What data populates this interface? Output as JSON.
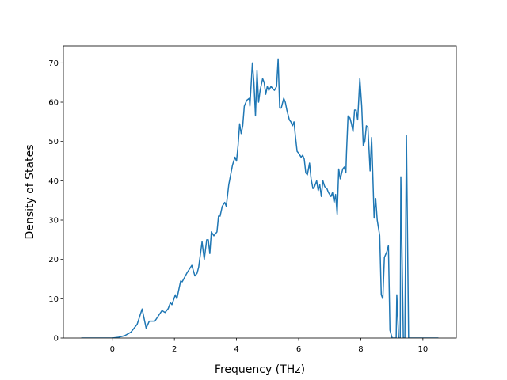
{
  "chart_data": {
    "type": "line",
    "xlabel": "Frequency (THz)",
    "ylabel": "Density of States",
    "color": "#1f77b4",
    "x": [
      -1.0,
      0.0,
      0.2,
      0.4,
      0.6,
      0.8,
      0.96,
      1.09,
      1.19,
      1.37,
      1.6,
      1.7,
      1.8,
      1.87,
      1.92,
      2.03,
      2.08,
      2.2,
      2.25,
      2.4,
      2.56,
      2.66,
      2.73,
      2.78,
      2.89,
      2.96,
      3.04,
      3.09,
      3.14,
      3.19,
      3.27,
      3.37,
      3.42,
      3.47,
      3.54,
      3.62,
      3.67,
      3.75,
      3.87,
      3.95,
      4.0,
      4.05,
      4.1,
      4.15,
      4.2,
      4.25,
      4.33,
      4.41,
      4.43,
      4.51,
      4.56,
      4.61,
      4.66,
      4.71,
      4.76,
      4.84,
      4.89,
      4.94,
      4.99,
      5.04,
      5.11,
      5.16,
      5.22,
      5.29,
      5.34,
      5.39,
      5.44,
      5.52,
      5.57,
      5.62,
      5.7,
      5.75,
      5.8,
      5.85,
      5.9,
      5.95,
      6.0,
      6.08,
      6.13,
      6.18,
      6.23,
      6.28,
      6.35,
      6.4,
      6.46,
      6.51,
      6.58,
      6.63,
      6.68,
      6.73,
      6.78,
      6.84,
      6.91,
      6.96,
      7.04,
      7.09,
      7.14,
      7.19,
      7.24,
      7.29,
      7.34,
      7.42,
      7.47,
      7.52,
      7.54,
      7.59,
      7.65,
      7.7,
      7.75,
      7.8,
      7.85,
      7.9,
      7.97,
      8.03,
      8.08,
      8.13,
      8.18,
      8.23,
      8.3,
      8.35,
      8.43,
      8.48,
      8.53,
      8.61,
      8.66,
      8.71,
      8.76,
      8.84,
      8.89,
      8.94,
      9.01,
      9.14,
      9.16,
      9.22,
      9.27,
      9.29,
      9.37,
      9.42,
      9.47,
      9.54,
      10.5
    ],
    "values": [
      0,
      0,
      0.2,
      0.6,
      1.5,
      3.5,
      7.4,
      2.5,
      4.3,
      4.3,
      7,
      6.5,
      7.5,
      9,
      8.5,
      11,
      10,
      14.5,
      14.3,
      16.5,
      18.5,
      15.8,
      16.5,
      18,
      24.5,
      20,
      25,
      25,
      21.5,
      27,
      26,
      27,
      31,
      31,
      33.5,
      34.5,
      33.5,
      39,
      44,
      46,
      45,
      49,
      54.5,
      52,
      54,
      59,
      60.5,
      61,
      59,
      70,
      65,
      56.5,
      68,
      60,
      63,
      66,
      65,
      62,
      64,
      63,
      64,
      63.5,
      63,
      64,
      71,
      58.5,
      58.5,
      61,
      60,
      58,
      55.5,
      55,
      54,
      55,
      51,
      47.5,
      47,
      46,
      46.5,
      45.5,
      42,
      41.5,
      44.5,
      40.5,
      38,
      38.5,
      40,
      37.5,
      39,
      36,
      40,
      38.5,
      38,
      37,
      36,
      37,
      34.5,
      36.5,
      31.5,
      43,
      40.5,
      43,
      43.5,
      42,
      47,
      56.5,
      56,
      54.5,
      52.5,
      58,
      58,
      55.5,
      66,
      59,
      49,
      50,
      54,
      53.5,
      42.5,
      51,
      30.5,
      35.5,
      30,
      26,
      11,
      10,
      20.5,
      22,
      23.5,
      2,
      0,
      0,
      11,
      0,
      0,
      41,
      0,
      0,
      51.5,
      0,
      0
    ],
    "xlim": [
      -1.575,
      11.075
    ],
    "xticks": [
      0,
      2,
      4,
      6,
      8,
      10
    ],
    "ylim": [
      0,
      74.3
    ],
    "yticks": [
      0,
      10,
      20,
      30,
      40,
      50,
      60,
      70
    ]
  }
}
